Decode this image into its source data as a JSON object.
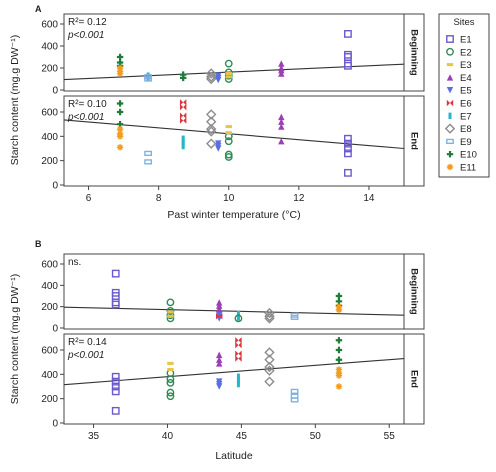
{
  "figure": {
    "legend_title": "Sites",
    "ylabel": "Starch content (mg.g DW⁻¹)"
  },
  "sites": [
    {
      "name": "E1",
      "color": "#6a5acd",
      "marker": "square"
    },
    {
      "name": "E2",
      "color": "#2e8b57",
      "marker": "circle"
    },
    {
      "name": "E3",
      "color": "#e8c547",
      "marker": "dash"
    },
    {
      "name": "E4",
      "color": "#9b3fb5",
      "marker": "triangle-up"
    },
    {
      "name": "E5",
      "color": "#5b6ee1",
      "marker": "triangle-down"
    },
    {
      "name": "E6",
      "color": "#e0343c",
      "marker": "bowtie"
    },
    {
      "name": "E7",
      "color": "#27b5c9",
      "marker": "bar"
    },
    {
      "name": "E8",
      "color": "#8c8c8c",
      "marker": "diamond"
    },
    {
      "name": "E9",
      "color": "#7fb3e0",
      "marker": "rect"
    },
    {
      "name": "E10",
      "color": "#1e7b3a",
      "marker": "plus"
    },
    {
      "name": "E11",
      "color": "#f39c1e",
      "marker": "star"
    }
  ],
  "chart_data": [
    {
      "panel": "A",
      "type": "scatter",
      "xlabel": "Past winter temperature (°C)",
      "xlim": [
        5.3,
        15
      ],
      "xticks": [
        6,
        8,
        10,
        12,
        14
      ],
      "rows": [
        {
          "label": "Beginning",
          "r2": "R²= 0.12",
          "p": "p<0.001",
          "ylim": [
            0,
            600
          ],
          "yticks": [
            0,
            200,
            400,
            600
          ],
          "trend": {
            "x": [
              5.3,
              15
            ],
            "y": [
              95,
              235
            ]
          },
          "points": [
            {
              "site": "E1",
              "x": 13.4,
              "y": [
                510,
                320,
                300,
                240,
                220
              ]
            },
            {
              "site": "E2",
              "x": 10.0,
              "y": [
                240,
                160,
                130,
                100
              ]
            },
            {
              "site": "E3",
              "x": 10.0,
              "y": [
                150,
                120
              ]
            },
            {
              "site": "E4",
              "x": 11.5,
              "y": [
                240,
                200,
                180,
                150
              ]
            },
            {
              "site": "E5",
              "x": 9.7,
              "y": [
                130,
                110,
                90
              ]
            },
            {
              "site": "E7",
              "x": 7.7,
              "y": [
                130,
                110
              ]
            },
            {
              "site": "E8",
              "x": 9.5,
              "y": [
                150,
                120,
                100
              ]
            },
            {
              "site": "E9",
              "x": 7.7,
              "y": [
                120,
                100
              ]
            },
            {
              "site": "E10",
              "x": 6.9,
              "y": [
                300,
                250,
                220
              ]
            },
            {
              "site": "E11",
              "x": 6.9,
              "y": [
                200,
                170,
                150
              ]
            },
            {
              "site": "E10",
              "x": 8.7,
              "y": [
                140,
                110
              ]
            }
          ]
        },
        {
          "label": "End",
          "r2": "R²= 0.10",
          "p": "p<0.001",
          "ylim": [
            0,
            600
          ],
          "yticks": [
            0,
            200,
            400,
            600
          ],
          "trend": {
            "x": [
              5.3,
              15
            ],
            "y": [
              535,
              300
            ]
          },
          "points": [
            {
              "site": "E1",
              "x": 13.4,
              "y": [
                380,
                340,
                300,
                260,
                100
              ]
            },
            {
              "site": "E2",
              "x": 10.0,
              "y": [
                400,
                360,
                250,
                230
              ]
            },
            {
              "site": "E3",
              "x": 10.0,
              "y": [
                480,
                430
              ]
            },
            {
              "site": "E4",
              "x": 11.5,
              "y": [
                560,
                520,
                480,
                360
              ]
            },
            {
              "site": "E5",
              "x": 9.7,
              "y": [
                340,
                320,
                300
              ]
            },
            {
              "site": "E6",
              "x": 8.7,
              "y": [
                680,
                640,
                570,
                530
              ]
            },
            {
              "site": "E7",
              "x": 8.7,
              "y": [
                380,
                350,
                320
              ]
            },
            {
              "site": "E8",
              "x": 9.5,
              "y": [
                580,
                520,
                460,
                440,
                340
              ]
            },
            {
              "site": "E9",
              "x": 7.7,
              "y": [
                260,
                190
              ]
            },
            {
              "site": "E10",
              "x": 6.9,
              "y": [
                670,
                600,
                500
              ]
            },
            {
              "site": "E11",
              "x": 6.9,
              "y": [
                460,
                420,
                400,
                310
              ]
            }
          ]
        }
      ]
    },
    {
      "panel": "B",
      "type": "scatter",
      "xlabel": "Latitude",
      "xlim": [
        33,
        56
      ],
      "xticks": [
        35,
        40,
        45,
        50,
        55
      ],
      "rows": [
        {
          "label": "Beginning",
          "r2": "ns.",
          "p": "",
          "ylim": [
            0,
            600
          ],
          "yticks": [
            0,
            200,
            400,
            600
          ],
          "trend": {
            "x": [
              33,
              56
            ],
            "y": [
              195,
              120
            ]
          },
          "points": [
            {
              "site": "E1",
              "x": 36.5,
              "y": [
                510,
                330,
                300,
                240,
                220
              ]
            },
            {
              "site": "E2",
              "x": 40.2,
              "y": [
                240,
                160,
                120,
                90
              ]
            },
            {
              "site": "E3",
              "x": 40.2,
              "y": [
                150,
                110
              ]
            },
            {
              "site": "E4",
              "x": 43.5,
              "y": [
                240,
                210,
                180,
                150,
                130
              ]
            },
            {
              "site": "E5",
              "x": 43.5,
              "y": [
                120,
                100,
                90
              ]
            },
            {
              "site": "E6",
              "x": 43.5,
              "y": [
                110
              ]
            },
            {
              "site": "E7",
              "x": 44.8,
              "y": [
                130,
                100
              ]
            },
            {
              "site": "E2",
              "x": 44.8,
              "y": [
                90
              ]
            },
            {
              "site": "E8",
              "x": 46.9,
              "y": [
                140,
                110,
                90
              ]
            },
            {
              "site": "E9",
              "x": 48.6,
              "y": [
                120,
                100
              ]
            },
            {
              "site": "E10",
              "x": 51.6,
              "y": [
                300,
                250,
                210
              ]
            },
            {
              "site": "E11",
              "x": 51.6,
              "y": [
                200,
                170
              ]
            }
          ]
        },
        {
          "label": "End",
          "r2": "R²= 0.14",
          "p": "p<0.001",
          "ylim": [
            0,
            600
          ],
          "yticks": [
            0,
            200,
            400,
            600
          ],
          "trend": {
            "x": [
              33,
              56
            ],
            "y": [
              315,
              530
            ]
          },
          "points": [
            {
              "site": "E1",
              "x": 36.5,
              "y": [
                380,
                340,
                300,
                260,
                100
              ]
            },
            {
              "site": "E2",
              "x": 40.2,
              "y": [
                410,
                360,
                330,
                250,
                220
              ]
            },
            {
              "site": "E3",
              "x": 40.2,
              "y": [
                490,
                440
              ]
            },
            {
              "site": "E4",
              "x": 43.5,
              "y": [
                560,
                520,
                490
              ]
            },
            {
              "site": "E5",
              "x": 43.5,
              "y": [
                340,
                320,
                300
              ]
            },
            {
              "site": "E6",
              "x": 44.8,
              "y": [
                680,
                640,
                570,
                530
              ]
            },
            {
              "site": "E7",
              "x": 44.8,
              "y": [
                380,
                350,
                320
              ]
            },
            {
              "site": "E8",
              "x": 46.9,
              "y": [
                580,
                520,
                460,
                430,
                340
              ]
            },
            {
              "site": "E9",
              "x": 48.6,
              "y": [
                260,
                220,
                190
              ]
            },
            {
              "site": "E10",
              "x": 51.6,
              "y": [
                680,
                600,
                520
              ]
            },
            {
              "site": "E11",
              "x": 51.6,
              "y": [
                440,
                410,
                390,
                300
              ]
            }
          ]
        }
      ]
    }
  ]
}
